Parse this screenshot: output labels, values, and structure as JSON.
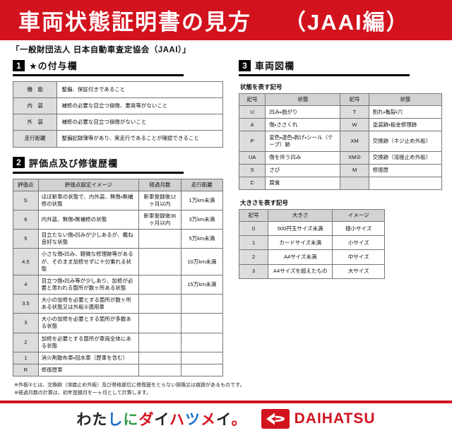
{
  "page": {
    "title": "車両状態証明書の見方",
    "title_suffix": "（JAAI編）",
    "subtitle": "「一般財団法人 日本自動車査定協会（JAAI）」"
  },
  "section1": {
    "number": "1",
    "title": "★の付与欄",
    "table": {
      "rows": [
        [
          "機　能",
          "整備、保証付きであること"
        ],
        [
          "内　装",
          "補修の必要な目立つ損傷、悪臭等がないこと"
        ],
        [
          "外　装",
          "補修の必要な目立つ損傷がないこと"
        ],
        [
          "走行距離",
          "整備記録簿等があり、実走行であることが確認できること"
        ]
      ]
    }
  },
  "section2": {
    "number": "2",
    "title": "評価点及び修復歴欄",
    "table": {
      "headers": [
        "評価点",
        "評価点設定イメージ",
        "経過月数",
        "走行距離"
      ],
      "rows": [
        [
          "S",
          "ほぼ新車の状態で、内外装、無傷・無補修の状態",
          "新車登録後12ヶ月以内",
          "1万km未満"
        ],
        [
          "6",
          "内外装、無傷・無補修の状態",
          "新車登録後36ヶ月以内",
          "3万km未満"
        ],
        [
          "5",
          "目立たない傷・凹みが少しあるが、概ね良好な状態",
          "",
          "5万km未満"
        ],
        [
          "4.5",
          "小さな傷・凹み、軽微な修理跡等があるが、そのまま加修せずに十分乗れる状態",
          "",
          "10万km未満"
        ],
        [
          "4",
          "目立つ傷・凹み等が少しあり、加修が必要と思われる箇所が数ヶ所ある状態",
          "",
          "15万km未満"
        ],
        [
          "3.5",
          "大小の加修を必要とする箇所が数ヶ所ある状態又は外板②適用車",
          "",
          ""
        ],
        [
          "3",
          "大小の加修を必要とする箇所が多数ある状態",
          "",
          ""
        ],
        [
          "2",
          "加修を必要とする箇所が車両全体にある状態",
          "",
          ""
        ],
        [
          "1",
          "消火剤散布車・冠水車（歴車を含む）",
          "",
          ""
        ],
        [
          "R",
          "修復歴車",
          "",
          ""
        ]
      ]
    }
  },
  "section3": {
    "number": "3",
    "title": "車両図欄",
    "symbols_label": "状態を表す記号",
    "symbols_table": {
      "headers": [
        "記号",
        "状態",
        "記号",
        "状態"
      ],
      "rows": [
        [
          "U",
          "凹み・曲がり",
          "T",
          "割れ・亀裂・穴"
        ],
        [
          "A",
          "傷・ささくれ",
          "W",
          "塗装跡・板金修理跡"
        ],
        [
          "P",
          "変色・退色・剥げ・シール（テープ）跡",
          "XM",
          "交換跡（ネジ止め外板）"
        ],
        [
          "UA",
          "傷を伴う凹み",
          "XM②",
          "交換跡（溶接止め外板）"
        ],
        [
          "S",
          "さび",
          "M",
          "修復歴"
        ],
        [
          "C",
          "腐食",
          "",
          ""
        ]
      ]
    },
    "size_label": "大きさを表す記号",
    "size_table": {
      "headers": [
        "記号",
        "大きさ",
        "イメージ"
      ],
      "rows": [
        [
          "0",
          "500円玉サイズ未満",
          "極小サイズ"
        ],
        [
          "1",
          "カードサイズ未満",
          "小サイズ"
        ],
        [
          "2",
          "A4サイズ未満",
          "中サイズ"
        ],
        [
          "3",
          "A4サイズを超えたもの",
          "大サイズ"
        ]
      ]
    }
  },
  "footnotes": [
    "※外板②とは、交換跡（溶接止め外板）及び骨格部位に修復歴をとらない損傷又は痕跡があるものです。",
    "※経過月数の計算は、初年登録月を一ヶ月として計算します。"
  ],
  "footer": {
    "slogan": "わたしにダイハツメイ。",
    "slogan_colors": [
      "#222222",
      "#222222",
      "#1c70c8",
      "#2f9e41",
      "#d2131e",
      "#222222",
      "#d2131e",
      "#1c70c8",
      "#d2131e",
      "#222222",
      "#d2131e"
    ],
    "brand": "DAIHATSU",
    "brand_color": "#d2131e"
  },
  "colors": {
    "header_bg": "#d2131e",
    "accent_red": "#d2131e",
    "table_header_bg": "#d2d2d2",
    "label_cell_bg": "#dddddd"
  }
}
